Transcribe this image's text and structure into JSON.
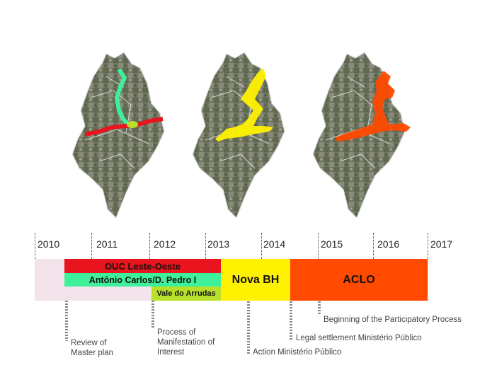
{
  "timeline": {
    "years": [
      "2010",
      "2011",
      "2012",
      "2013",
      "2014",
      "2015",
      "2016",
      "2017"
    ]
  },
  "bars": {
    "ouc": "OUC Leste-Oeste",
    "antonio": "Antônio Carlos/D. Pedro I",
    "vale": "Vale do Arrudas",
    "novabh": "Nova BH",
    "aclo": "ACLO"
  },
  "annotations": {
    "review_1": "Review of",
    "review_2": "Master plan",
    "process_1": "Process of",
    "process_2": "Manifestation of",
    "process_3": "Interest",
    "action": "Action Ministério Público",
    "legal": "Legal settlement Ministério Público",
    "beginning": "Beginning of the Participatory Process"
  },
  "colors": {
    "ouc": "#e8141e",
    "antonio": "#3ff09a",
    "vale": "#b8e02a",
    "novabh": "#fff200",
    "aclo": "#ff4a00",
    "base": "#f2e4ea"
  }
}
